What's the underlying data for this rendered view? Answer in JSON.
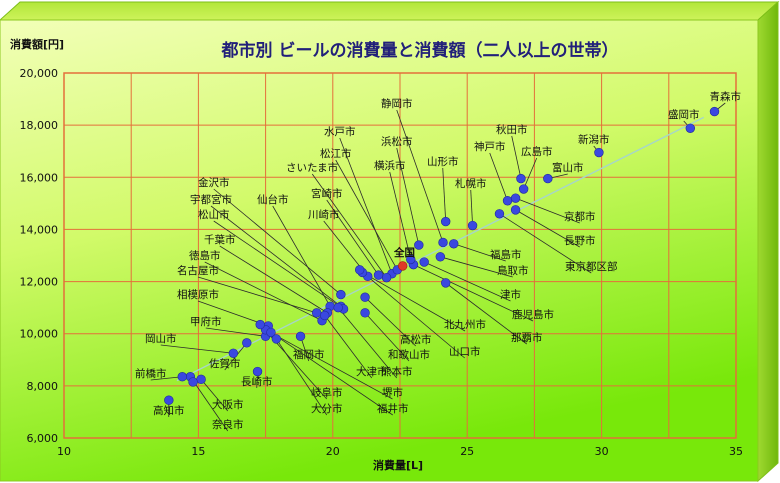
{
  "chart_data": {
    "type": "scatter",
    "title": "都市別 ビールの消費量と消費額（二人以上の世帯）",
    "xlabel": "消費量[L]",
    "ylabel": "消費額[円]",
    "xlim": [
      10,
      35
    ],
    "ylim": [
      6000,
      20000
    ],
    "xticks": [
      10,
      15,
      20,
      25,
      30,
      35
    ],
    "yticks": [
      6000,
      8000,
      10000,
      12000,
      14000,
      16000,
      18000,
      20000
    ],
    "ytick_labels": [
      "6,000",
      "8,000",
      "10,000",
      "12,000",
      "14,000",
      "16,000",
      "18,000",
      "20,000"
    ],
    "grid": true,
    "trendline": {
      "x": [
        14.2,
        33.8
      ],
      "y": [
        8200,
        18300
      ]
    },
    "colors": {
      "point": "#3a48e0",
      "national": "#e03a28",
      "background_top": "#ebff9c",
      "background_bottom": "#78e80a",
      "grid": "#e46f3a",
      "title": "#22207a"
    },
    "points": [
      {
        "name": "青森市",
        "x": 34.2,
        "y": 18520,
        "label": "青森市"
      },
      {
        "name": "盛岡市",
        "x": 33.3,
        "y": 17880,
        "label": "盛岡市"
      },
      {
        "name": "新潟市",
        "x": 29.9,
        "y": 16950,
        "label": "新潟市"
      },
      {
        "name": "富山市",
        "x": 28.0,
        "y": 15950,
        "label": "富山市"
      },
      {
        "name": "秋田市",
        "x": 27.0,
        "y": 15950,
        "label": "秋田市"
      },
      {
        "name": "広島市",
        "x": 27.1,
        "y": 15550,
        "label": "広島市"
      },
      {
        "name": "神戸市",
        "x": 26.5,
        "y": 15100,
        "label": "神戸市"
      },
      {
        "name": "京都市",
        "x": 26.8,
        "y": 15200,
        "label": "京都市"
      },
      {
        "name": "長野市",
        "x": 26.8,
        "y": 14750,
        "label": "長野市"
      },
      {
        "name": "東京都区部",
        "x": 26.2,
        "y": 14600,
        "label": "東京都区部"
      },
      {
        "name": "札幌市",
        "x": 25.2,
        "y": 14150,
        "label": "札幌市"
      },
      {
        "name": "山形市",
        "x": 24.2,
        "y": 14300,
        "label": "山形市"
      },
      {
        "name": "静岡市",
        "x": 24.1,
        "y": 13500,
        "label": "静岡市"
      },
      {
        "name": "福島市",
        "x": 24.5,
        "y": 13450,
        "label": "福島市"
      },
      {
        "name": "浜松市",
        "x": 23.2,
        "y": 13400,
        "label": "浜松市"
      },
      {
        "name": "鳥取市",
        "x": 24.0,
        "y": 12950,
        "label": "鳥取市"
      },
      {
        "name": "津市",
        "x": 23.4,
        "y": 12750,
        "label": "津市"
      },
      {
        "name": "鹿児島市",
        "x": 23.0,
        "y": 12650,
        "label": "鹿児島市"
      },
      {
        "name": "那覇市",
        "x": 24.2,
        "y": 11950,
        "label": "那覇市"
      },
      {
        "name": "横浜市",
        "x": 22.9,
        "y": 12850,
        "label": "横浜市"
      },
      {
        "name": "水戸市",
        "x": 22.2,
        "y": 12300,
        "label": "水戸市"
      },
      {
        "name": "松江市",
        "x": 22.4,
        "y": 12450,
        "label": "松江市"
      },
      {
        "name": "さいたま市",
        "x": 22.0,
        "y": 12150,
        "label": "さいたま市"
      },
      {
        "name": "宮崎市",
        "x": 21.7,
        "y": 12250,
        "label": "宮崎市"
      },
      {
        "name": "川崎市",
        "x": 21.3,
        "y": 12200,
        "label": "川崎市"
      },
      {
        "name": "北九州市",
        "x": 21.1,
        "y": 12350,
        "label": "北九州市"
      },
      {
        "name": "山口市",
        "x": 21.0,
        "y": 12450,
        "label": "山口市"
      },
      {
        "name": "金沢市",
        "x": 20.3,
        "y": 11500,
        "label": "金沢市"
      },
      {
        "name": "宇都宮市",
        "x": 20.3,
        "y": 11050,
        "label": "宇都宮市"
      },
      {
        "name": "松山市",
        "x": 20.4,
        "y": 10950,
        "label": "松山市"
      },
      {
        "name": "仙台市",
        "x": 19.9,
        "y": 11050,
        "label": "仙台市"
      },
      {
        "name": "高松市",
        "x": 21.2,
        "y": 11400,
        "label": "高松市"
      },
      {
        "name": "和歌山市",
        "x": 21.2,
        "y": 10800,
        "label": "和歌山市"
      },
      {
        "name": "千葉市",
        "x": 19.8,
        "y": 10800,
        "label": "千葉市"
      },
      {
        "name": "徳島市",
        "x": 19.6,
        "y": 10500,
        "label": "徳島市"
      },
      {
        "name": "名古屋市",
        "x": 19.4,
        "y": 10800,
        "label": "名古屋市"
      },
      {
        "name": "福岡市",
        "x": 18.8,
        "y": 9900,
        "label": "福岡市"
      },
      {
        "name": "相模原市",
        "x": 17.6,
        "y": 10300,
        "label": "相模原市"
      },
      {
        "name": "大津市",
        "x": 19.7,
        "y": 10700,
        "label": "大津市"
      },
      {
        "name": "熊本市",
        "x": 20.2,
        "y": 11000,
        "label": "熊本市"
      },
      {
        "name": "甲府市",
        "x": 17.5,
        "y": 9900,
        "label": "甲府市"
      },
      {
        "name": "堺市",
        "x": 17.5,
        "y": 10150,
        "label": "堺市"
      },
      {
        "name": "岐阜市",
        "x": 17.3,
        "y": 10350,
        "label": "岐阜市"
      },
      {
        "name": "福井市",
        "x": 17.7,
        "y": 10050,
        "label": "福井市"
      },
      {
        "name": "大分市",
        "x": 17.9,
        "y": 9800,
        "label": "大分市"
      },
      {
        "name": "佐賀市",
        "x": 16.8,
        "y": 9650,
        "label": "佐賀市"
      },
      {
        "name": "長崎市",
        "x": 17.2,
        "y": 8550,
        "label": "長崎市"
      },
      {
        "name": "岡山市",
        "x": 16.3,
        "y": 9250,
        "label": "岡山市"
      },
      {
        "name": "大阪市",
        "x": 15.1,
        "y": 8250,
        "label": "大阪市"
      },
      {
        "name": "奈良市",
        "x": 14.7,
        "y": 8350,
        "label": "奈良市"
      },
      {
        "name": "前橋市",
        "x": 14.4,
        "y": 8350,
        "label": "前橋市"
      },
      {
        "name": "高知市",
        "x": 13.9,
        "y": 7450,
        "label": "高知市"
      },
      {
        "name": "extra-point",
        "x": 14.8,
        "y": 8150,
        "label": ""
      },
      {
        "name": "全国",
        "x": 22.6,
        "y": 12600,
        "label": "全国",
        "national": true
      }
    ]
  }
}
